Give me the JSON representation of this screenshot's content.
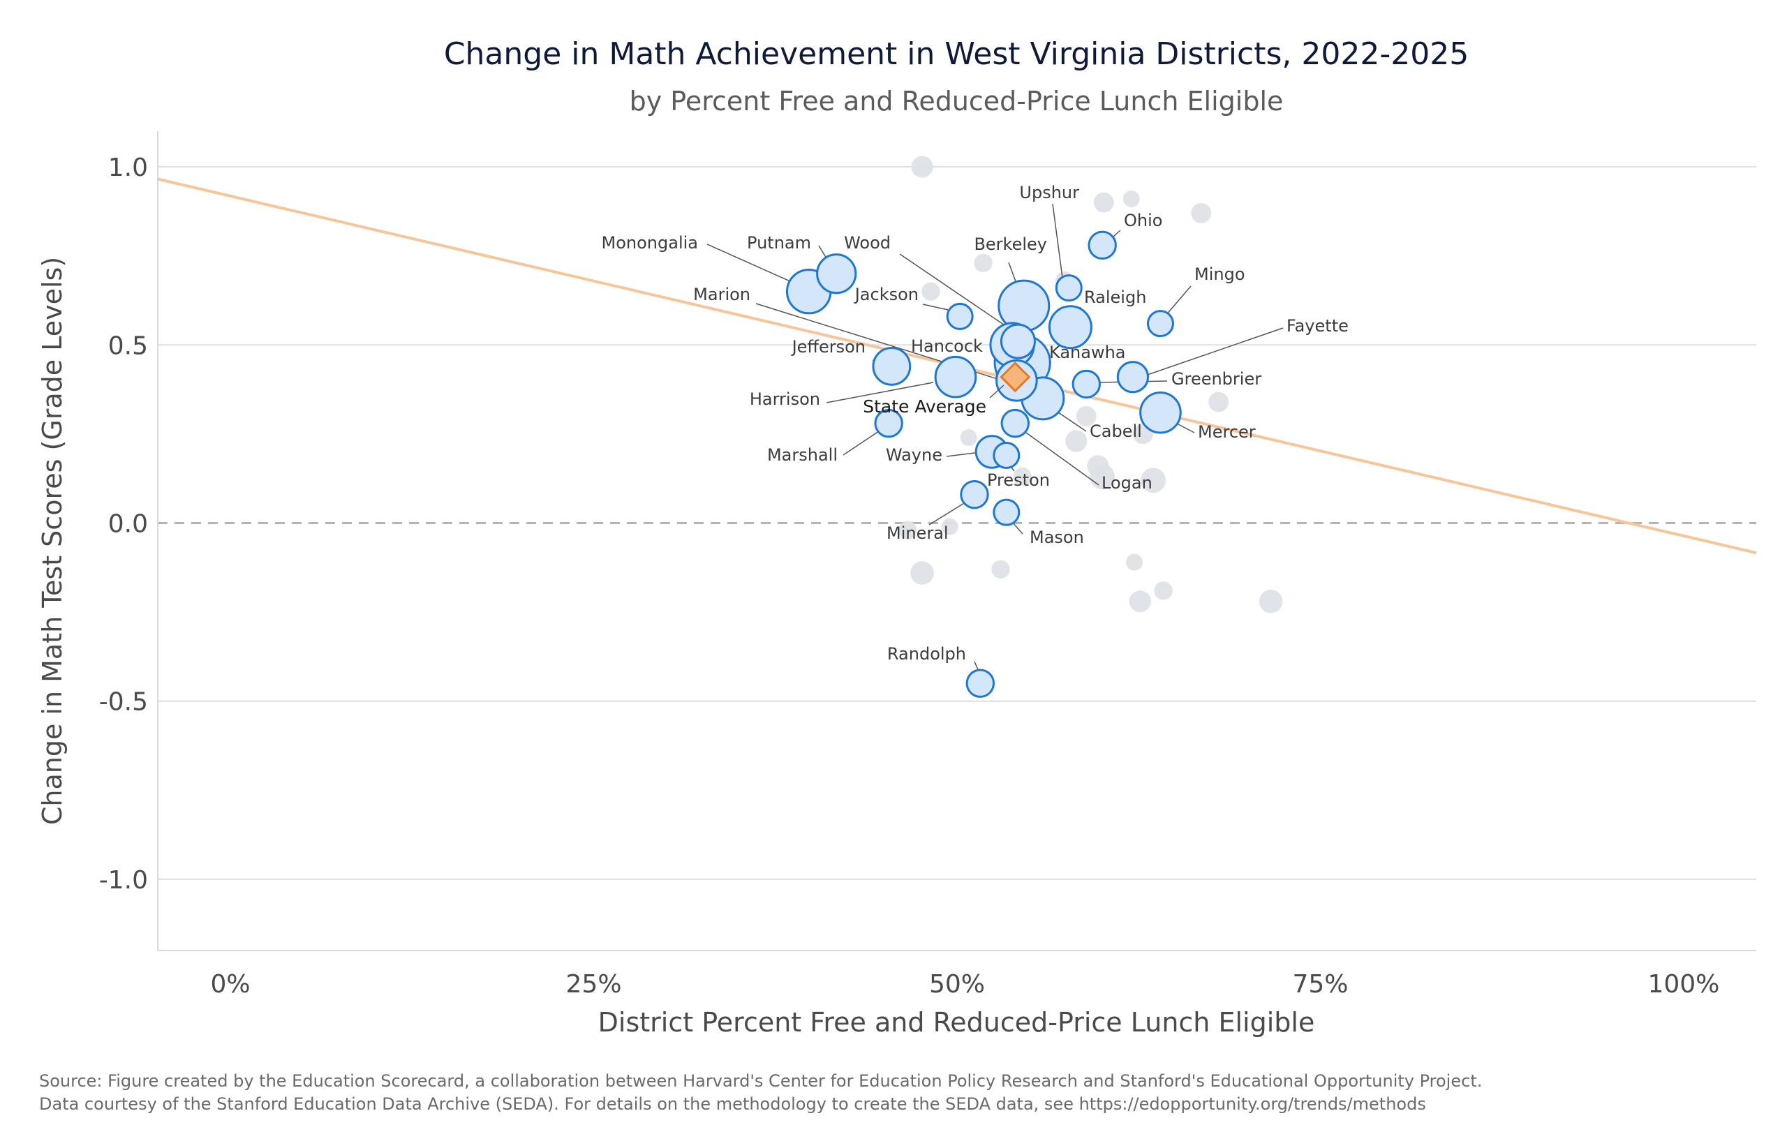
{
  "title": "Change in Math Achievement in West Virginia Districts, 2022-2025",
  "subtitle": "by Percent Free and Reduced-Price Lunch Eligible",
  "source_line1": "Source: Figure created by the Education Scorecard, a collaboration between Harvard's Center for Education Policy Research and Stanford's Educational Opportunity Project.",
  "source_line2": "Data courtesy of the Stanford Education Data Archive (SEDA). For details on the methodology to create the SEDA data, see https://edopportunity.org/trends/methods",
  "chart_data": {
    "type": "scatter",
    "xlabel": "District Percent Free and Reduced-Price Lunch Eligible",
    "ylabel": "Change in Math Test Scores (Grade Levels)",
    "xlim": [
      -5,
      105
    ],
    "ylim": [
      -1.2,
      1.1
    ],
    "x_ticks": [
      0,
      25,
      50,
      75,
      100
    ],
    "x_tick_labels": [
      "0%",
      "25%",
      "50%",
      "75%",
      "100%"
    ],
    "y_ticks": [
      1.0,
      0.5,
      0.0,
      -0.5,
      -1.0
    ],
    "y_tick_labels": [
      "1.0",
      "0.5",
      "0.0",
      "-0.5",
      "-1.0"
    ],
    "grid": "horizontal",
    "zero_line": "dashed",
    "colors": {
      "highlight_fill": "#d4e6fa",
      "highlight_stroke": "#1f77d0",
      "background_points": "#dde1e6",
      "trend_line": "#f6c59a",
      "state_marker_fill": "#f7b57a",
      "state_marker_stroke": "#e07b2a",
      "grid": "#dcdfe3",
      "zero_line": "#b5b5b5"
    },
    "trend_line": {
      "y_at_x0": 0.918,
      "slope_per_pct": -0.00954
    },
    "state_average": {
      "label": "State Average",
      "x": 54.0,
      "y": 0.41
    },
    "highlighted": [
      {
        "name": "Monongalia",
        "x": 39.8,
        "y": 0.65,
        "size": 2.6
      },
      {
        "name": "Putnam",
        "x": 41.7,
        "y": 0.7,
        "size": 2.3
      },
      {
        "name": "Wood",
        "x": 53.8,
        "y": 0.5,
        "size": 2.6
      },
      {
        "name": "Berkeley",
        "x": 54.6,
        "y": 0.61,
        "size": 3.0
      },
      {
        "name": "Upshur",
        "x": 57.7,
        "y": 0.66,
        "size": 1.5
      },
      {
        "name": "Ohio",
        "x": 60.0,
        "y": 0.78,
        "size": 1.6
      },
      {
        "name": "Mingo",
        "x": 64.0,
        "y": 0.56,
        "size": 1.5
      },
      {
        "name": "Jackson",
        "x": 50.2,
        "y": 0.58,
        "size": 1.5
      },
      {
        "name": "Marion",
        "x": 54.1,
        "y": 0.4,
        "size": 2.4
      },
      {
        "name": "Raleigh",
        "x": 57.8,
        "y": 0.55,
        "size": 2.5
      },
      {
        "name": "Fayette",
        "x": 62.1,
        "y": 0.41,
        "size": 1.8
      },
      {
        "name": "Jefferson",
        "x": 45.5,
        "y": 0.44,
        "size": 2.2
      },
      {
        "name": "Hancock",
        "x": 54.2,
        "y": 0.51,
        "size": 2.0
      },
      {
        "name": "Kanawha",
        "x": 54.5,
        "y": 0.45,
        "size": 3.3
      },
      {
        "name": "Greenbrier",
        "x": 58.9,
        "y": 0.39,
        "size": 1.6
      },
      {
        "name": "Harrison",
        "x": 49.9,
        "y": 0.41,
        "size": 2.4
      },
      {
        "name": "Cabell",
        "x": 55.9,
        "y": 0.35,
        "size": 2.5
      },
      {
        "name": "Mercer",
        "x": 64.0,
        "y": 0.31,
        "size": 2.4
      },
      {
        "name": "Marshall",
        "x": 45.3,
        "y": 0.28,
        "size": 1.6
      },
      {
        "name": "Logan",
        "x": 54.0,
        "y": 0.28,
        "size": 1.6
      },
      {
        "name": "Wayne",
        "x": 52.4,
        "y": 0.2,
        "size": 1.9
      },
      {
        "name": "Preston",
        "x": 53.4,
        "y": 0.19,
        "size": 1.5
      },
      {
        "name": "Mineral",
        "x": 51.2,
        "y": 0.08,
        "size": 1.6
      },
      {
        "name": "Mason",
        "x": 53.4,
        "y": 0.03,
        "size": 1.5
      },
      {
        "name": "Randolph",
        "x": 51.6,
        "y": -0.45,
        "size": 1.6
      }
    ],
    "background_points": [
      {
        "x": 47.6,
        "y": 1.0,
        "size": 1.3
      },
      {
        "x": 60.1,
        "y": 0.9,
        "size": 1.2
      },
      {
        "x": 62.0,
        "y": 0.91,
        "size": 1.0
      },
      {
        "x": 66.8,
        "y": 0.87,
        "size": 1.2
      },
      {
        "x": 51.8,
        "y": 0.73,
        "size": 1.1
      },
      {
        "x": 57.4,
        "y": 0.68,
        "size": 1.1
      },
      {
        "x": 48.2,
        "y": 0.65,
        "size": 1.1
      },
      {
        "x": 58.9,
        "y": 0.3,
        "size": 1.2
      },
      {
        "x": 68.0,
        "y": 0.34,
        "size": 1.2
      },
      {
        "x": 58.2,
        "y": 0.23,
        "size": 1.3
      },
      {
        "x": 62.8,
        "y": 0.25,
        "size": 1.2
      },
      {
        "x": 50.8,
        "y": 0.24,
        "size": 1.0
      },
      {
        "x": 59.7,
        "y": 0.16,
        "size": 1.3
      },
      {
        "x": 60.0,
        "y": 0.13,
        "size": 1.5
      },
      {
        "x": 63.5,
        "y": 0.12,
        "size": 1.5
      },
      {
        "x": 54.5,
        "y": 0.13,
        "size": 1.1
      },
      {
        "x": 46.6,
        "y": -0.02,
        "size": 1.1
      },
      {
        "x": 49.5,
        "y": -0.01,
        "size": 1.0
      },
      {
        "x": 47.6,
        "y": -0.14,
        "size": 1.4
      },
      {
        "x": 53.0,
        "y": -0.13,
        "size": 1.1
      },
      {
        "x": 62.2,
        "y": -0.11,
        "size": 1.0
      },
      {
        "x": 62.6,
        "y": -0.22,
        "size": 1.3
      },
      {
        "x": 64.2,
        "y": -0.19,
        "size": 1.1
      },
      {
        "x": 71.6,
        "y": -0.22,
        "size": 1.4
      }
    ]
  }
}
